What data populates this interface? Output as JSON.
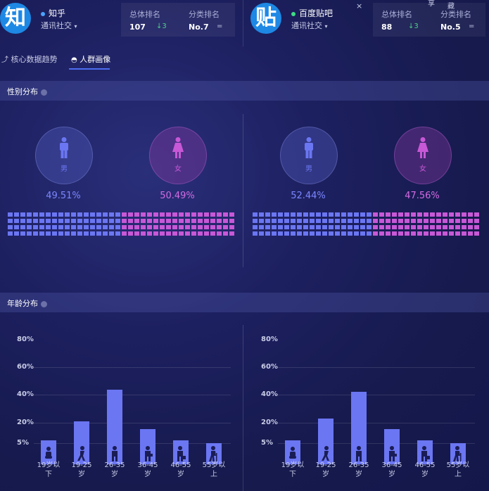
{
  "header": {
    "share_label": "享",
    "collect_label": "藏",
    "close_glyph": "×",
    "apps": [
      {
        "logo_char": "知",
        "name": "知乎",
        "dot_color": "#4aa3ff",
        "category": "通讯社交",
        "overall_rank_label": "总体排名",
        "overall_rank": "107",
        "overall_delta": "↓3",
        "category_rank_label": "分类排名",
        "category_rank": "No.7",
        "category_trend": "="
      },
      {
        "logo_char": "贴",
        "name": "百度贴吧",
        "dot_color": "#3ddc84",
        "category": "通讯社交",
        "overall_rank_label": "总体排名",
        "overall_rank": "88",
        "overall_delta": "↓3",
        "category_rank_label": "分类排名",
        "category_rank": "No.5",
        "category_trend": "="
      }
    ]
  },
  "tabs": [
    {
      "label": "核心数据趋势",
      "active": false
    },
    {
      "label": "人群画像",
      "active": true
    }
  ],
  "gender_section": {
    "title": "性别分布",
    "male_label": "男",
    "female_label": "女",
    "male_color": "#6b76f2",
    "female_color": "#c758d6",
    "panels": [
      {
        "male_pct": "49.51%",
        "female_pct": "50.49%",
        "male_value": 49.51,
        "female_value": 50.49
      },
      {
        "male_pct": "52.44%",
        "female_pct": "47.56%",
        "male_value": 52.44,
        "female_value": 47.56
      }
    ]
  },
  "age_section": {
    "title": "年龄分布"
  },
  "chart_data": [
    {
      "type": "bar",
      "categories": [
        "19岁以下",
        "19-25岁",
        "26-35岁",
        "36-45岁",
        "46-55岁",
        "55岁以上"
      ],
      "category_lines": [
        [
          "19岁以",
          "下"
        ],
        [
          "19-25",
          "岁"
        ],
        [
          "26-35",
          "岁"
        ],
        [
          "36-45",
          "岁"
        ],
        [
          "46-55",
          "岁"
        ],
        [
          "55岁以",
          "上"
        ]
      ],
      "values": [
        7,
        21,
        44,
        15,
        7,
        5
      ],
      "ytick_labels": [
        "80%",
        "60%",
        "40%",
        "20%",
        "5%"
      ],
      "ytick_values": [
        80,
        60,
        40,
        20,
        5
      ],
      "ylim": [
        0,
        80
      ],
      "grid": true
    },
    {
      "type": "bar",
      "categories": [
        "19岁以下",
        "19-25岁",
        "26-35岁",
        "36-45岁",
        "46-55岁",
        "55岁以上"
      ],
      "category_lines": [
        [
          "19岁以",
          "下"
        ],
        [
          "19-25",
          "岁"
        ],
        [
          "26-35",
          "岁"
        ],
        [
          "36-45",
          "岁"
        ],
        [
          "46-55",
          "岁"
        ],
        [
          "55岁以",
          "上"
        ]
      ],
      "values": [
        7,
        23,
        42,
        15,
        7,
        5
      ],
      "ytick_labels": [
        "80%",
        "60%",
        "40%",
        "20%",
        "5%"
      ],
      "ytick_values": [
        80,
        60,
        40,
        20,
        5
      ],
      "ylim": [
        0,
        80
      ],
      "grid": true
    }
  ]
}
